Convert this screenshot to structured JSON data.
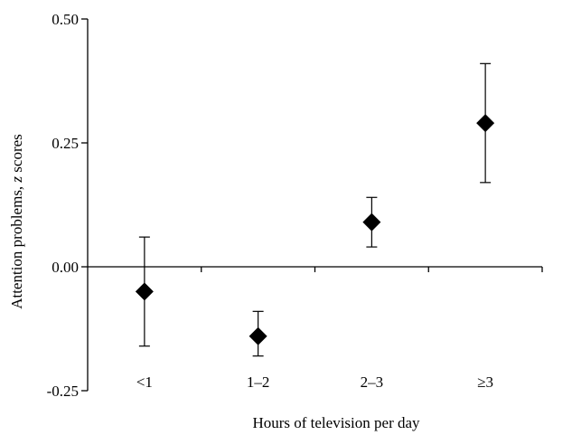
{
  "chart_data": {
    "type": "scatter",
    "title": "",
    "xlabel": "Hours of television per day",
    "ylabel": "Attention problems, z scores",
    "ylabel_italic_word": "z",
    "categories": [
      "<1",
      "1–2",
      "2–3",
      "≥3"
    ],
    "series": [
      {
        "values": [
          -0.05,
          -0.14,
          0.09,
          0.29
        ],
        "error_low": [
          -0.16,
          -0.18,
          0.04,
          0.17
        ],
        "error_high": [
          0.06,
          -0.09,
          0.14,
          0.41
        ]
      }
    ],
    "ylim": [
      -0.25,
      0.5
    ],
    "y_ticks": [
      -0.25,
      0.0,
      0.25,
      0.5
    ],
    "y_tick_labels": [
      "-0.25",
      "0.00",
      "0.25",
      "0.50"
    ],
    "grid": false,
    "marker": "diamond",
    "marker_color": "#000000"
  }
}
